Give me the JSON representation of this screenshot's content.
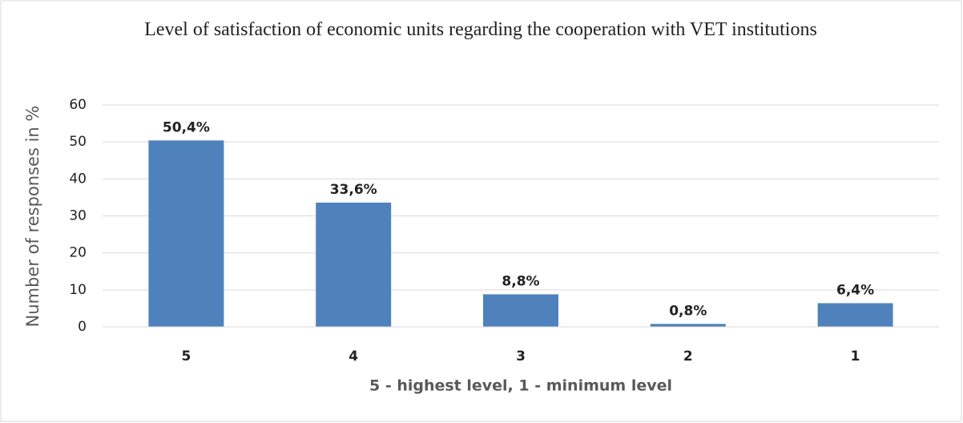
{
  "chart_data": {
    "type": "bar",
    "title": "Level of satisfaction of economic units regarding the cooperation with VET institutions",
    "x_label": "5  - highest level, 1 - minimum level",
    "y_label": "Number of responses in  %",
    "categories": [
      "5",
      "4",
      "3",
      "2",
      "1"
    ],
    "values": [
      50.4,
      33.6,
      8.8,
      0.8,
      6.4
    ],
    "value_labels": [
      "50,4%",
      "33,6%",
      "8,8%",
      "0,8%",
      "6,4%"
    ],
    "color": "#4f81bd",
    "ylim": [
      0,
      60
    ],
    "yticks": [
      0,
      10,
      20,
      30,
      40,
      50,
      60
    ],
    "grid": true
  }
}
